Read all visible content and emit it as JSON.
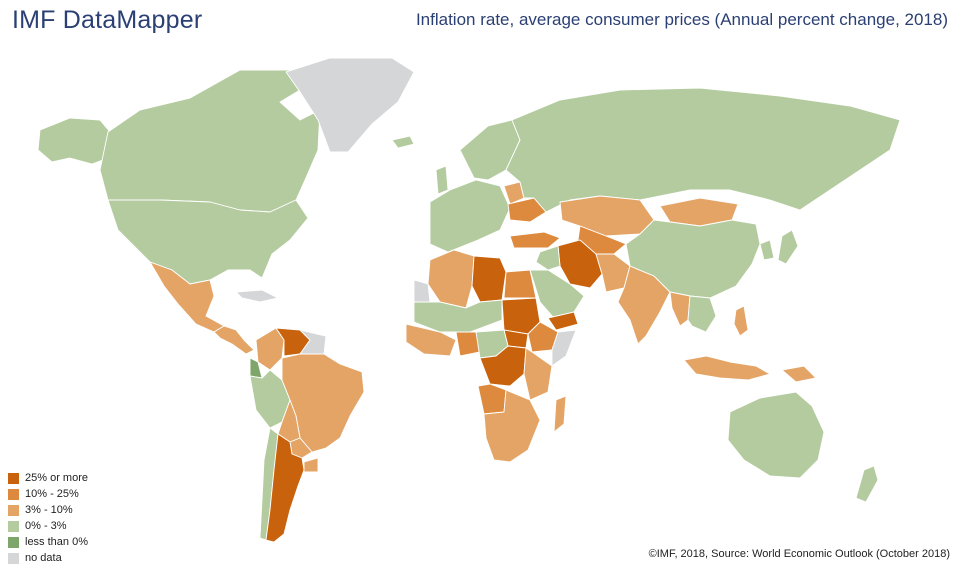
{
  "header": {
    "app_title": "IMF DataMapper",
    "map_title": "Inflation rate, average consumer prices (Annual percent change, 2018)"
  },
  "legend": {
    "items": [
      {
        "label": "25% or more",
        "color": "#c9620c"
      },
      {
        "label": "10% - 25%",
        "color": "#dd8a3f"
      },
      {
        "label": "3% - 10%",
        "color": "#e4a466"
      },
      {
        "label": "0% - 3%",
        "color": "#b3cb9e"
      },
      {
        "label": "less than 0%",
        "color": "#7ea56a"
      },
      {
        "label": "no data",
        "color": "#d5d6d8"
      }
    ]
  },
  "footer": {
    "credit": "©IMF, 2018, Source: World Economic Outlook (October 2018)"
  },
  "map": {
    "regions": [
      {
        "name": "canada",
        "category": "0% - 3%"
      },
      {
        "name": "alaska",
        "category": "0% - 3%"
      },
      {
        "name": "united-states",
        "category": "0% - 3%"
      },
      {
        "name": "greenland",
        "category": "no data"
      },
      {
        "name": "mexico",
        "category": "3% - 10%"
      },
      {
        "name": "central-america",
        "category": "3% - 10%"
      },
      {
        "name": "cuba",
        "category": "no data"
      },
      {
        "name": "venezuela",
        "category": "25% or more"
      },
      {
        "name": "guyana-suriname",
        "category": "no data"
      },
      {
        "name": "colombia",
        "category": "3% - 10%"
      },
      {
        "name": "ecuador",
        "category": "less than 0%"
      },
      {
        "name": "peru",
        "category": "0% - 3%"
      },
      {
        "name": "brazil",
        "category": "3% - 10%"
      },
      {
        "name": "bolivia",
        "category": "3% - 10%"
      },
      {
        "name": "paraguay",
        "category": "3% - 10%"
      },
      {
        "name": "chile",
        "category": "0% - 3%"
      },
      {
        "name": "argentina",
        "category": "25% or more"
      },
      {
        "name": "uruguay",
        "category": "3% - 10%"
      },
      {
        "name": "western-europe",
        "category": "0% - 3%"
      },
      {
        "name": "scandinavia",
        "category": "0% - 3%"
      },
      {
        "name": "iceland",
        "category": "0% - 3%"
      },
      {
        "name": "uk",
        "category": "0% - 3%"
      },
      {
        "name": "ukraine",
        "category": "10% - 25%"
      },
      {
        "name": "belarus",
        "category": "3% - 10%"
      },
      {
        "name": "russia",
        "category": "0% - 3%"
      },
      {
        "name": "turkey",
        "category": "10% - 25%"
      },
      {
        "name": "kazakhstan",
        "category": "3% - 10%"
      },
      {
        "name": "mongolia",
        "category": "3% - 10%"
      },
      {
        "name": "central-asia",
        "category": "10% - 25%"
      },
      {
        "name": "iran",
        "category": "25% or more"
      },
      {
        "name": "iraq",
        "category": "0% - 3%"
      },
      {
        "name": "saudi-arabia",
        "category": "0% - 3%"
      },
      {
        "name": "yemen",
        "category": "25% or more"
      },
      {
        "name": "pakistan-afghanistan",
        "category": "3% - 10%"
      },
      {
        "name": "india",
        "category": "3% - 10%"
      },
      {
        "name": "myanmar",
        "category": "3% - 10%"
      },
      {
        "name": "china",
        "category": "0% - 3%"
      },
      {
        "name": "korea",
        "category": "0% - 3%"
      },
      {
        "name": "japan",
        "category": "0% - 3%"
      },
      {
        "name": "southeast-asia",
        "category": "0% - 3%"
      },
      {
        "name": "philippines",
        "category": "3% - 10%"
      },
      {
        "name": "indonesia",
        "category": "3% - 10%"
      },
      {
        "name": "papua-new-guinea",
        "category": "3% - 10%"
      },
      {
        "name": "australia",
        "category": "0% - 3%"
      },
      {
        "name": "new-zealand",
        "category": "0% - 3%"
      },
      {
        "name": "morocco-algeria",
        "category": "3% - 10%"
      },
      {
        "name": "western-sahara",
        "category": "no data"
      },
      {
        "name": "libya",
        "category": "25% or more"
      },
      {
        "name": "egypt",
        "category": "10% - 25%"
      },
      {
        "name": "sudan",
        "category": "25% or more"
      },
      {
        "name": "south-sudan",
        "category": "25% or more"
      },
      {
        "name": "sahel",
        "category": "0% - 3%"
      },
      {
        "name": "west-africa",
        "category": "3% - 10%"
      },
      {
        "name": "nigeria",
        "category": "10% - 25%"
      },
      {
        "name": "ethiopia",
        "category": "10% - 25%"
      },
      {
        "name": "somalia",
        "category": "no data"
      },
      {
        "name": "central-africa",
        "category": "0% - 3%"
      },
      {
        "name": "congo-dr",
        "category": "25% or more"
      },
      {
        "name": "angola",
        "category": "10% - 25%"
      },
      {
        "name": "east-africa",
        "category": "3% - 10%"
      },
      {
        "name": "southern-africa",
        "category": "3% - 10%"
      },
      {
        "name": "madagascar",
        "category": "3% - 10%"
      }
    ]
  }
}
